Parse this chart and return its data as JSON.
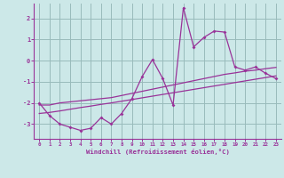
{
  "x_values": [
    0,
    1,
    2,
    3,
    4,
    5,
    6,
    7,
    8,
    9,
    10,
    11,
    12,
    13,
    14,
    15,
    16,
    17,
    18,
    19,
    20,
    21,
    22,
    23
  ],
  "y_main": [
    -2.0,
    -2.6,
    -3.0,
    -3.15,
    -3.3,
    -3.2,
    -2.7,
    -3.0,
    -2.5,
    -1.8,
    -0.75,
    0.05,
    -0.85,
    -2.1,
    2.5,
    0.65,
    1.1,
    1.4,
    1.35,
    -0.3,
    -0.45,
    -0.3,
    -0.6,
    -0.85
  ],
  "y_trend1": [
    -2.1,
    -2.1,
    -2.0,
    -1.95,
    -1.9,
    -1.85,
    -1.8,
    -1.75,
    -1.65,
    -1.55,
    -1.45,
    -1.35,
    -1.25,
    -1.15,
    -1.05,
    -0.95,
    -0.85,
    -0.75,
    -0.65,
    -0.58,
    -0.5,
    -0.45,
    -0.38,
    -0.32
  ],
  "y_trend2": [
    -2.5,
    -2.45,
    -2.38,
    -2.3,
    -2.22,
    -2.15,
    -2.07,
    -2.0,
    -1.92,
    -1.84,
    -1.76,
    -1.68,
    -1.6,
    -1.52,
    -1.44,
    -1.36,
    -1.28,
    -1.2,
    -1.12,
    -1.04,
    -0.96,
    -0.88,
    -0.8,
    -0.72
  ],
  "line_color": "#993399",
  "bg_color": "#cce8e8",
  "grid_color": "#99bbbb",
  "xlabel": "Windchill (Refroidissement éolien,°C)",
  "ylim": [
    -3.7,
    2.7
  ],
  "xlim": [
    -0.5,
    23.5
  ],
  "yticks": [
    -3,
    -2,
    -1,
    0,
    1,
    2
  ],
  "xticks": [
    0,
    1,
    2,
    3,
    4,
    5,
    6,
    7,
    8,
    9,
    10,
    11,
    12,
    13,
    14,
    15,
    16,
    17,
    18,
    19,
    20,
    21,
    22,
    23
  ]
}
